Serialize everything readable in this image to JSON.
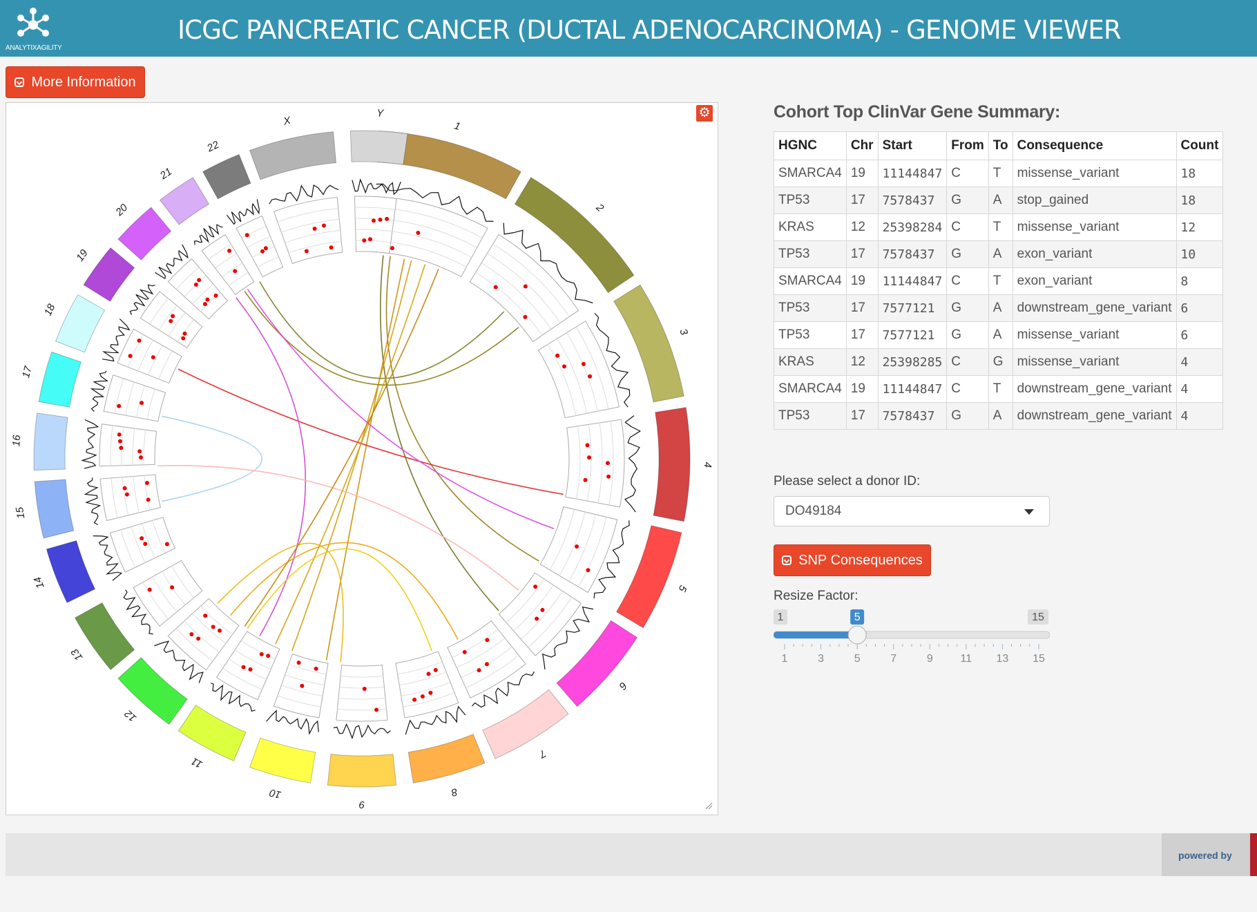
{
  "header": {
    "title": "ICGC PANCREATIC CANCER (DUCTAL ADENOCARCINOMA) - GENOME VIEWER",
    "logo_text": "ANALYTIXAGILITY"
  },
  "more_info_button": {
    "label": "More Information"
  },
  "circos": {
    "chromosomes": [
      {
        "label": "1",
        "color": "#b5904a"
      },
      {
        "label": "2",
        "color": "#8e8f3c"
      },
      {
        "label": "3",
        "color": "#b8b660"
      },
      {
        "label": "4",
        "color": "#d34445"
      },
      {
        "label": "5",
        "color": "#ff4a4a"
      },
      {
        "label": "6",
        "color": "#ff48de"
      },
      {
        "label": "7",
        "color": "#ffd5d5"
      },
      {
        "label": "8",
        "color": "#ffb048"
      },
      {
        "label": "9",
        "color": "#ffd44e"
      },
      {
        "label": "10",
        "color": "#ffff48"
      },
      {
        "label": "11",
        "color": "#dcff40"
      },
      {
        "label": "12",
        "color": "#44ee40"
      },
      {
        "label": "13",
        "color": "#6a9a48"
      },
      {
        "label": "14",
        "color": "#4444d8"
      },
      {
        "label": "15",
        "color": "#8eb2f6"
      },
      {
        "label": "16",
        "color": "#bad8fc"
      },
      {
        "label": "17",
        "color": "#46fcf6"
      },
      {
        "label": "18",
        "color": "#cefcfc"
      },
      {
        "label": "19",
        "color": "#b048d8"
      },
      {
        "label": "20",
        "color": "#d462fa"
      },
      {
        "label": "21",
        "color": "#d8aef6"
      },
      {
        "label": "22",
        "color": "#7c7c7c"
      },
      {
        "label": "X",
        "color": "#b4b4b4"
      },
      {
        "label": "Y",
        "color": "#d6d6d6"
      }
    ]
  },
  "summary": {
    "title": "Cohort Top ClinVar Gene Summary:",
    "columns": [
      "HGNC",
      "Chr",
      "Start",
      "From",
      "To",
      "Consequence",
      "Count"
    ],
    "rows": [
      [
        "SMARCA4",
        "19",
        "11144847",
        "C",
        "T",
        "missense_variant",
        "18"
      ],
      [
        "TP53",
        "17",
        "7578437",
        "G",
        "A",
        "stop_gained",
        "18"
      ],
      [
        "KRAS",
        "12",
        "25398284",
        "C",
        "T",
        "missense_variant",
        "12"
      ],
      [
        "TP53",
        "17",
        "7578437",
        "G",
        "A",
        "exon_variant",
        "10"
      ],
      [
        "SMARCA4",
        "19",
        "11144847",
        "C",
        "T",
        "exon_variant",
        "8"
      ],
      [
        "TP53",
        "17",
        "7577121",
        "G",
        "A",
        "downstream_gene_variant",
        "6"
      ],
      [
        "TP53",
        "17",
        "7577121",
        "G",
        "A",
        "missense_variant",
        "6"
      ],
      [
        "KRAS",
        "12",
        "25398285",
        "C",
        "G",
        "missense_variant",
        "4"
      ],
      [
        "SMARCA4",
        "19",
        "11144847",
        "C",
        "T",
        "downstream_gene_variant",
        "4"
      ],
      [
        "TP53",
        "17",
        "7578437",
        "G",
        "A",
        "downstream_gene_variant",
        "4"
      ]
    ]
  },
  "donor": {
    "label": "Please select a donor ID:",
    "selected": "DO49184"
  },
  "snp_button": {
    "label": "SNP Consequences"
  },
  "resize": {
    "label": "Resize Factor:",
    "min": 1,
    "max": 15,
    "value": 5,
    "min_label": "1",
    "max_label": "15",
    "value_label": "5",
    "ticks": [
      "1",
      "3",
      "5",
      "7",
      "9",
      "11",
      "13",
      "15"
    ]
  },
  "footer": {
    "powered_by": "powered by"
  }
}
